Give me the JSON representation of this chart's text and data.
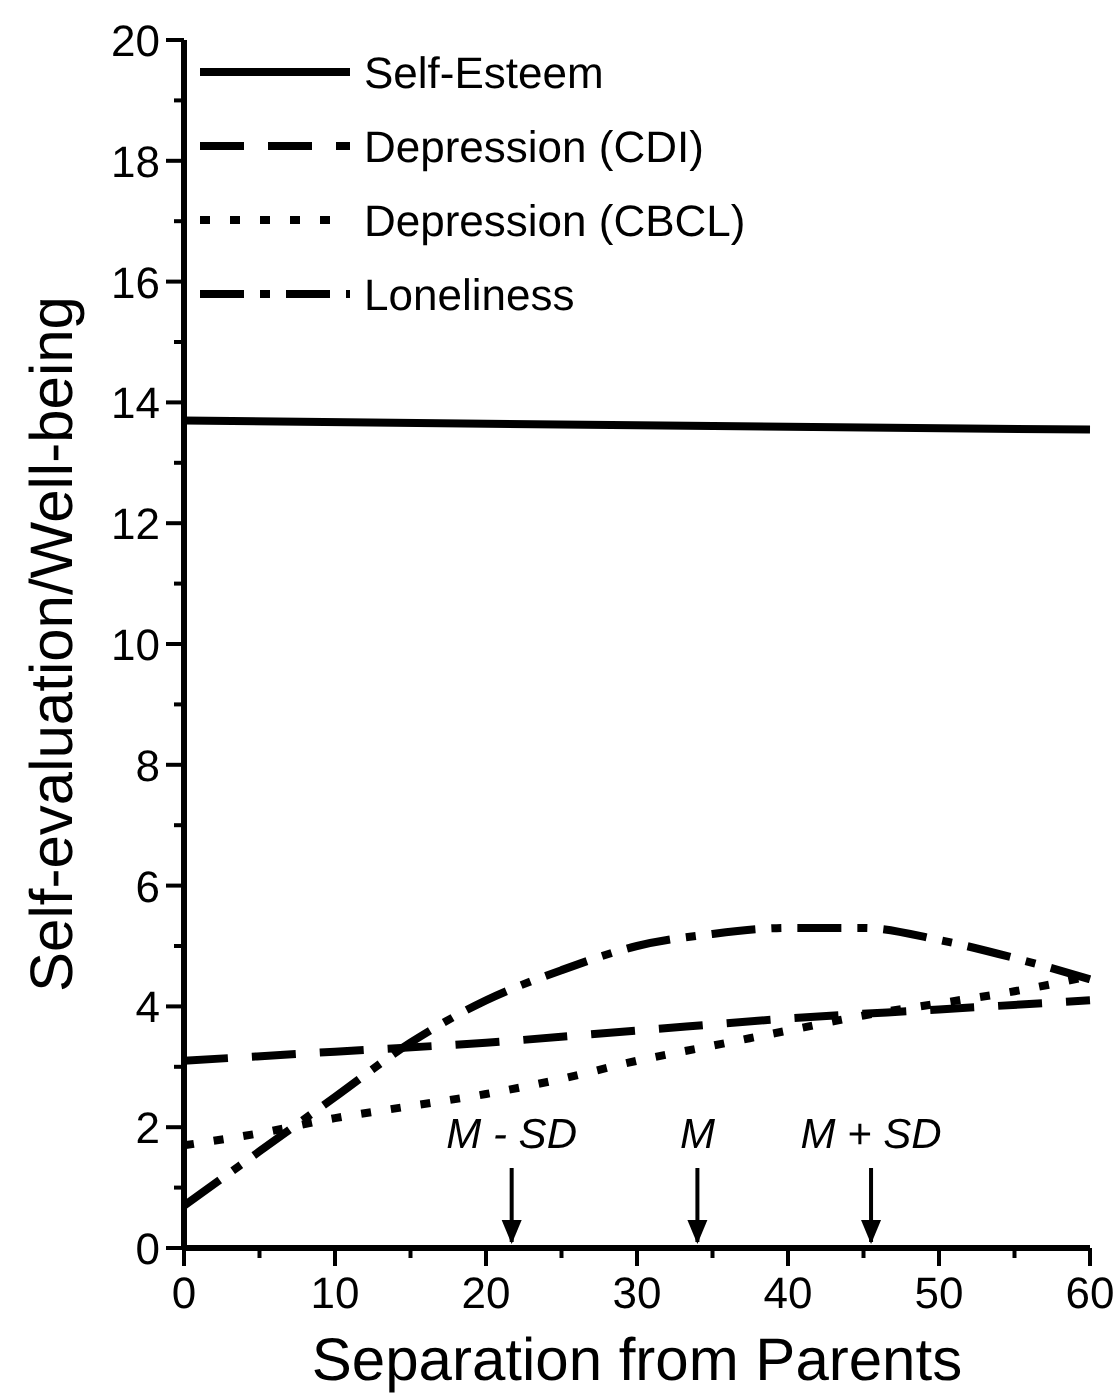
{
  "chart_data": {
    "type": "line",
    "xlabel": "Separation from Parents",
    "ylabel": "Self-evaluation/Well-being",
    "xlim": [
      0,
      60
    ],
    "ylim": [
      0,
      20
    ],
    "xticks": [
      0,
      {
        "value": 5,
        "label": null
      },
      10,
      {
        "value": 15,
        "label": null
      },
      20,
      {
        "value": 25,
        "label": null
      },
      30,
      {
        "value": 35,
        "label": null
      },
      40,
      {
        "value": 45,
        "label": null
      },
      50,
      {
        "value": 55,
        "label": null
      },
      60
    ],
    "yticks": [
      0,
      {
        "value": 1,
        "label": null
      },
      2,
      {
        "value": 3,
        "label": null
      },
      4,
      {
        "value": 5,
        "label": null
      },
      6,
      {
        "value": 7,
        "label": null
      },
      8,
      {
        "value": 9,
        "label": null
      },
      10,
      {
        "value": 11,
        "label": null
      },
      12,
      {
        "value": 13,
        "label": null
      },
      14,
      {
        "value": 15,
        "label": null
      },
      16,
      {
        "value": 17,
        "label": null
      },
      18,
      {
        "value": 19,
        "label": null
      },
      20
    ],
    "grid": false,
    "legend": "top left",
    "marker": "none",
    "ref_lines": [
      {
        "axis": "x",
        "value": 21.7,
        "label": "M - SD"
      },
      {
        "axis": "x",
        "value": 34,
        "label": "M"
      },
      {
        "axis": "x",
        "value": 45.5,
        "label": "M + SD"
      }
    ],
    "series": [
      {
        "name": "Self-Esteem",
        "color": "#000000",
        "line_style": "solid",
        "x": [
          0,
          30,
          60
        ],
        "values": [
          13.7,
          13.62,
          13.55
        ]
      },
      {
        "name": "Depression (CDI)",
        "color": "#000000",
        "line_style": "dashed",
        "x": [
          0,
          10,
          20,
          30,
          40,
          50,
          60
        ],
        "values": [
          3.1,
          3.25,
          3.4,
          3.6,
          3.8,
          3.95,
          4.1
        ]
      },
      {
        "name": "Depression (CBCL)",
        "color": "#000000",
        "line_style": "dotted",
        "x": [
          0,
          5,
          10,
          15,
          20,
          25,
          30,
          35,
          40,
          45,
          50,
          55,
          60
        ],
        "values": [
          1.7,
          1.9,
          2.15,
          2.35,
          2.55,
          2.8,
          3.1,
          3.35,
          3.6,
          3.85,
          4.05,
          4.25,
          4.5
        ]
      },
      {
        "name": "Loneliness",
        "color": "#000000",
        "line_style": "dashdot",
        "x": [
          0,
          5,
          10,
          15,
          20,
          25,
          30,
          35,
          40,
          45,
          50,
          55,
          60
        ],
        "values": [
          0.7,
          1.6,
          2.5,
          3.4,
          4.1,
          4.6,
          5.0,
          5.2,
          5.3,
          5.3,
          5.1,
          4.8,
          4.45
        ]
      }
    ]
  }
}
